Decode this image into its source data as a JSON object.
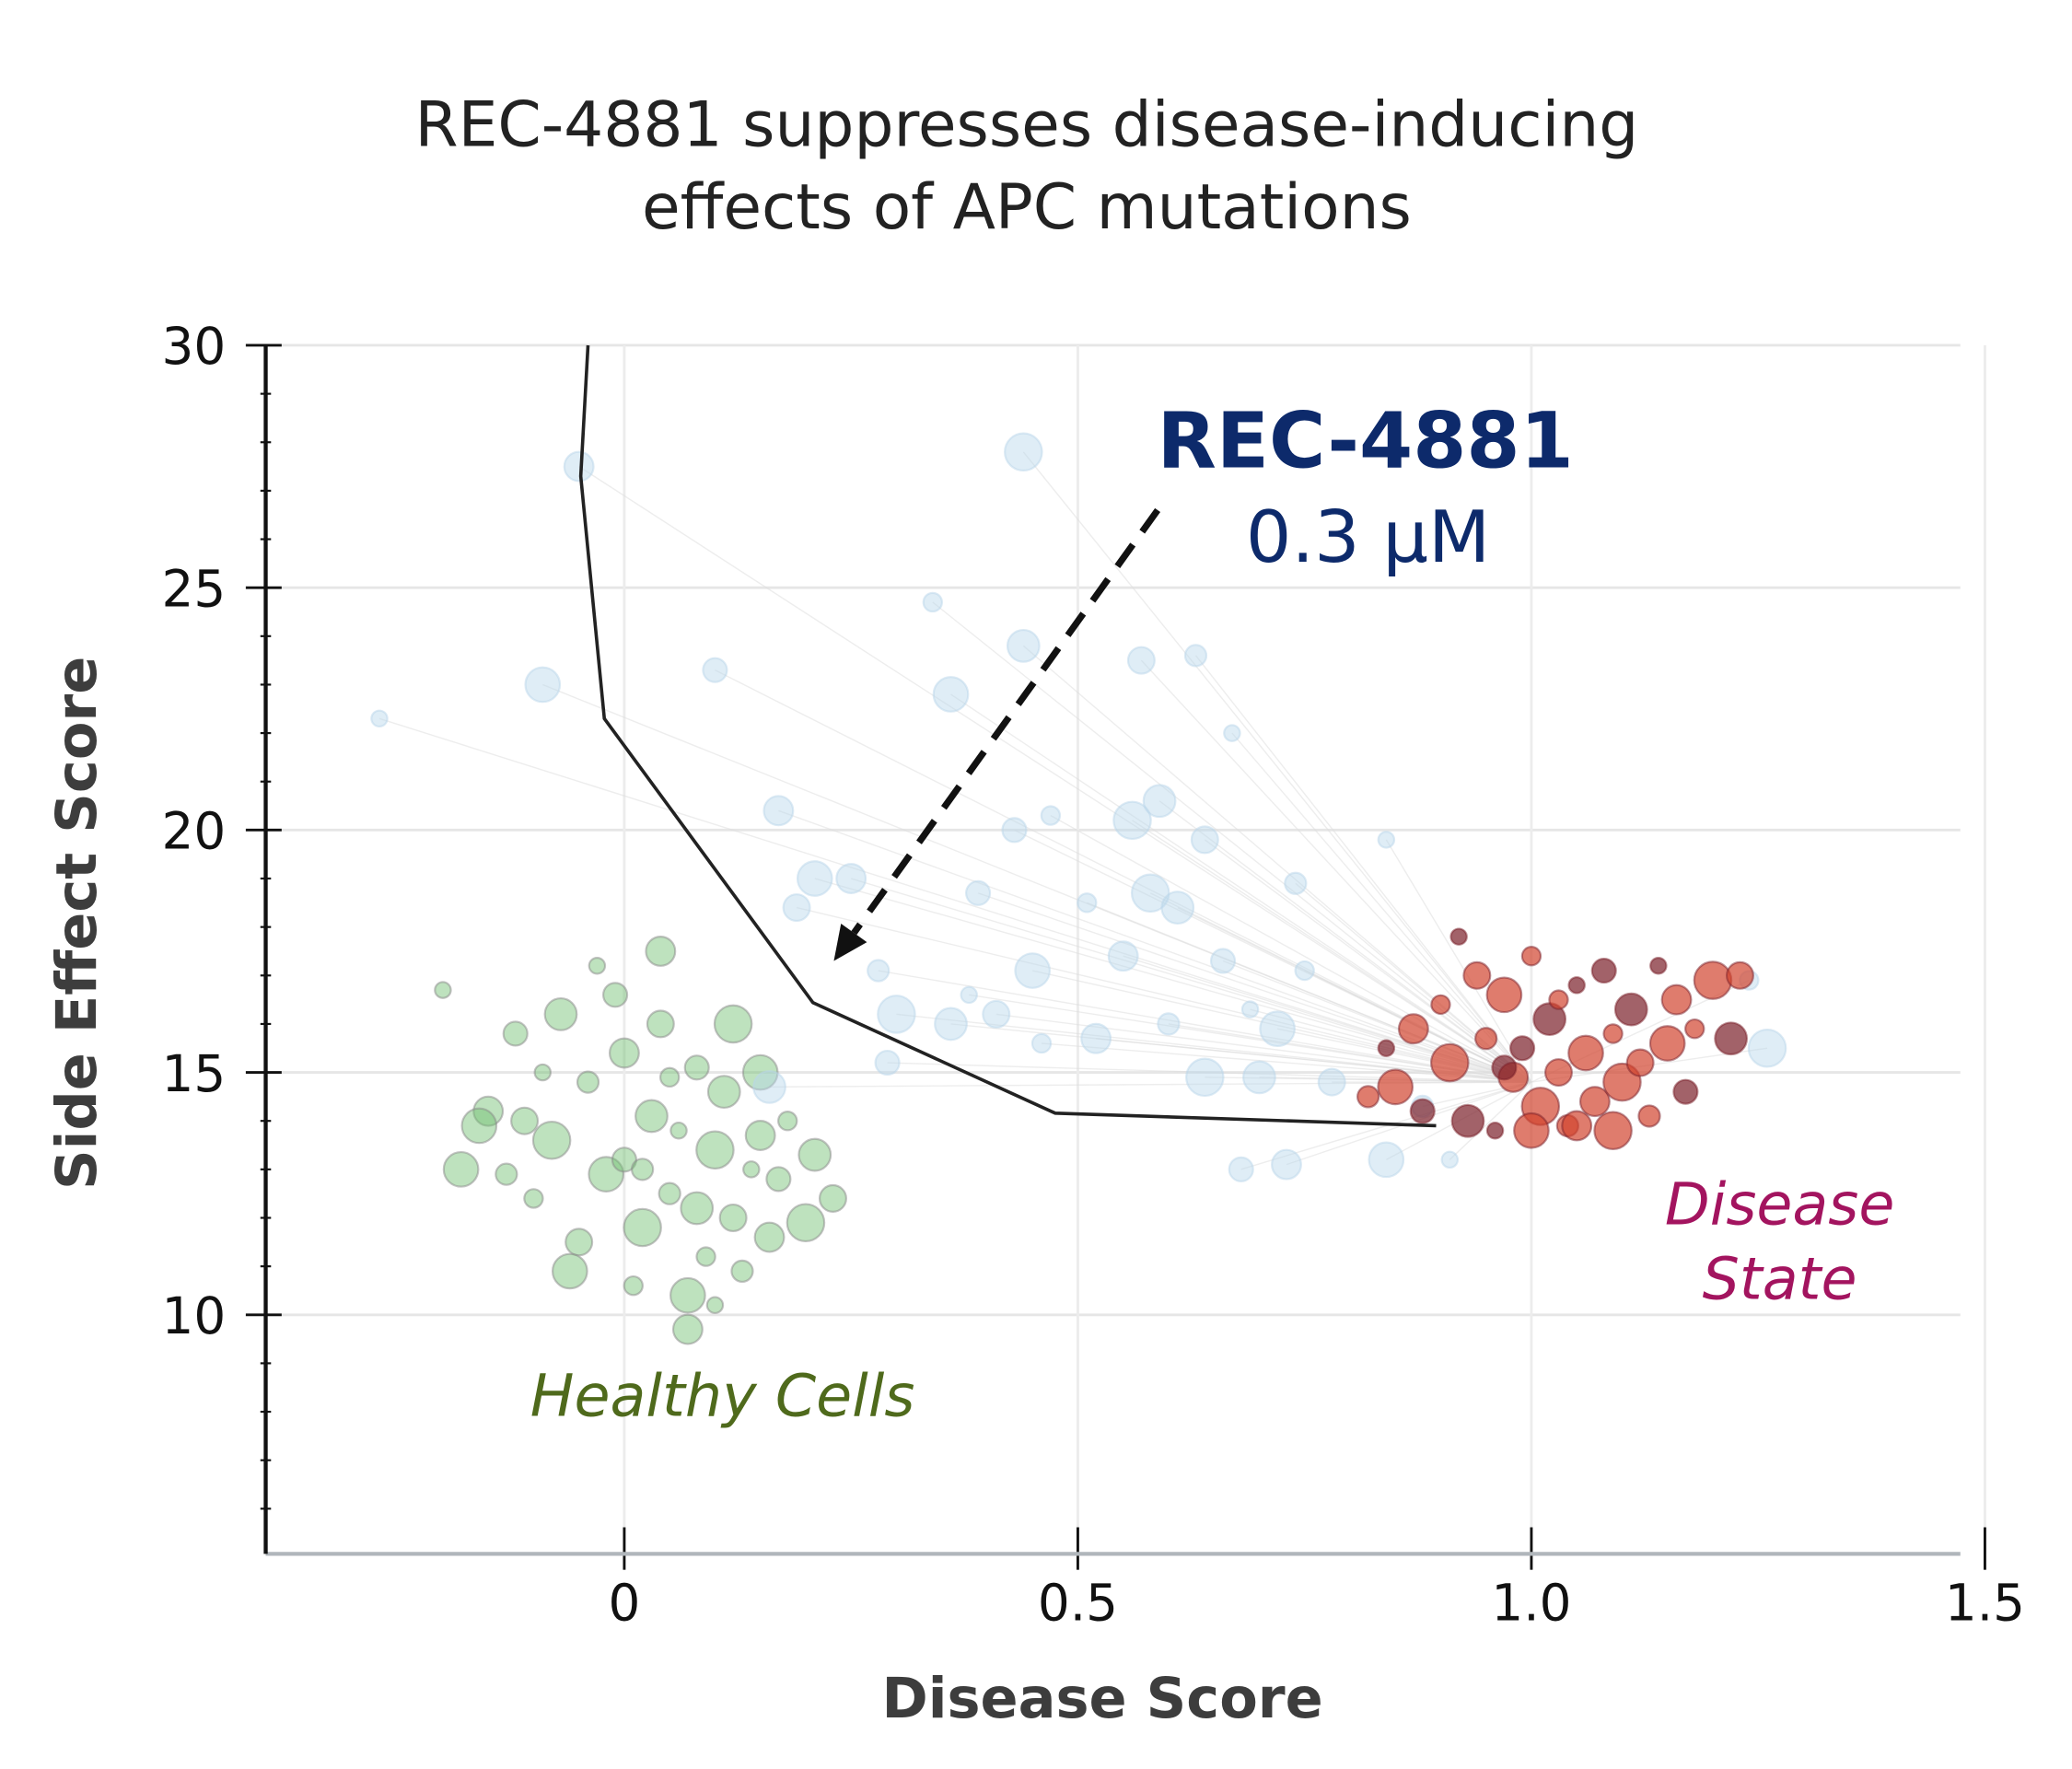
{
  "chart_data": {
    "type": "scatter",
    "title_lines": [
      "REC-4881 suppresses disease-inducing",
      "effects of APC mutations"
    ],
    "xlabel": "Disease Score",
    "ylabel": "Side Effect Score",
    "xlim": [
      -0.395,
      1.5
    ],
    "ylim": [
      5,
      30
    ],
    "xticks": [
      {
        "v": 0,
        "label": "0"
      },
      {
        "v": 0.5,
        "label": "0.5"
      },
      {
        "v": 1.0,
        "label": "1.0"
      },
      {
        "v": 1.5,
        "label": "1.5"
      }
    ],
    "yticks": [
      {
        "v": 10,
        "label": "10"
      },
      {
        "v": 15,
        "label": "15"
      },
      {
        "v": 20,
        "label": "20"
      },
      {
        "v": 25,
        "label": "25"
      },
      {
        "v": 30,
        "label": "30"
      }
    ],
    "grid": true,
    "colors": {
      "healthy": "#6fbf6f",
      "compound": "#b9d6ea",
      "disease": "#d2452f",
      "disease_dark": "#7a1f2a",
      "line": "#222222",
      "annotation": "#0d2a6b",
      "disease_label": "#a3145f",
      "healthy_label": "#4f6a1c"
    },
    "annotations": {
      "compound_name": "REC-4881",
      "compound_dose": "0.3 µM",
      "disease_label_lines": [
        "Disease",
        "State"
      ],
      "healthy_label": "Healthy Cells",
      "arrow_from": [
        0.588,
        26.6
      ],
      "arrow_to": [
        0.231,
        17.3
      ]
    },
    "trajectory": {
      "x": [
        0.895,
        0.475,
        0.208,
        -0.022,
        -0.048,
        -0.04
      ],
      "y": [
        13.9,
        14.16,
        16.44,
        22.3,
        27.3,
        30
      ]
    },
    "series": [
      {
        "key": "healthy",
        "points": [
          [
            -0.2,
            16.7
          ],
          [
            -0.18,
            13.0
          ],
          [
            -0.15,
            14.2
          ],
          [
            -0.12,
            15.8
          ],
          [
            -0.1,
            12.4
          ],
          [
            -0.08,
            13.6
          ],
          [
            -0.07,
            16.2
          ],
          [
            -0.05,
            11.5
          ],
          [
            -0.04,
            14.8
          ],
          [
            -0.03,
            17.2
          ],
          [
            -0.02,
            12.9
          ],
          [
            0.0,
            15.4
          ],
          [
            0.0,
            13.2
          ],
          [
            0.01,
            10.6
          ],
          [
            0.02,
            11.8
          ],
          [
            0.03,
            14.1
          ],
          [
            0.04,
            16.0
          ],
          [
            0.05,
            12.5
          ],
          [
            0.06,
            13.8
          ],
          [
            0.07,
            10.4
          ],
          [
            0.07,
            9.7
          ],
          [
            0.08,
            15.1
          ],
          [
            0.09,
            11.2
          ],
          [
            0.1,
            13.4
          ],
          [
            0.11,
            14.6
          ],
          [
            0.12,
            12.0
          ],
          [
            0.13,
            10.9
          ],
          [
            0.14,
            13.0
          ],
          [
            0.15,
            15.0
          ],
          [
            0.16,
            11.6
          ],
          [
            0.17,
            12.8
          ],
          [
            0.18,
            14.0
          ],
          [
            0.2,
            11.9
          ],
          [
            0.21,
            13.3
          ],
          [
            0.23,
            12.4
          ],
          [
            -0.13,
            12.9
          ],
          [
            -0.09,
            15.0
          ],
          [
            -0.06,
            10.9
          ],
          [
            0.04,
            17.5
          ],
          [
            -0.01,
            16.6
          ],
          [
            0.05,
            14.9
          ],
          [
            0.12,
            16.0
          ],
          [
            0.08,
            12.2
          ],
          [
            -0.11,
            14.0
          ],
          [
            0.02,
            13.0
          ],
          [
            0.1,
            10.2
          ],
          [
            -0.16,
            13.9
          ],
          [
            0.15,
            13.7
          ]
        ]
      },
      {
        "key": "compound",
        "points": [
          [
            -0.27,
            22.3
          ],
          [
            -0.09,
            23.0
          ],
          [
            -0.05,
            27.5
          ],
          [
            0.1,
            23.3
          ],
          [
            0.34,
            24.7
          ],
          [
            0.44,
            27.8
          ],
          [
            0.44,
            23.8
          ],
          [
            0.57,
            23.5
          ],
          [
            0.63,
            23.6
          ],
          [
            0.67,
            22.0
          ],
          [
            0.36,
            22.8
          ],
          [
            0.17,
            20.4
          ],
          [
            0.43,
            20.0
          ],
          [
            0.47,
            20.3
          ],
          [
            0.56,
            20.2
          ],
          [
            0.59,
            20.6
          ],
          [
            0.64,
            19.8
          ],
          [
            0.74,
            18.9
          ],
          [
            0.84,
            19.8
          ],
          [
            0.21,
            19.0
          ],
          [
            0.25,
            19.0
          ],
          [
            0.39,
            18.7
          ],
          [
            0.51,
            18.5
          ],
          [
            0.58,
            18.7
          ],
          [
            0.61,
            18.4
          ],
          [
            0.19,
            18.4
          ],
          [
            0.28,
            17.1
          ],
          [
            0.38,
            16.6
          ],
          [
            0.45,
            17.1
          ],
          [
            0.55,
            17.4
          ],
          [
            0.66,
            17.3
          ],
          [
            0.75,
            17.1
          ],
          [
            0.3,
            16.2
          ],
          [
            0.36,
            16.0
          ],
          [
            0.41,
            16.2
          ],
          [
            0.6,
            16.0
          ],
          [
            0.69,
            16.3
          ],
          [
            0.72,
            15.9
          ],
          [
            0.52,
            15.7
          ],
          [
            0.29,
            15.2
          ],
          [
            0.46,
            15.6
          ],
          [
            0.64,
            14.9
          ],
          [
            0.7,
            14.9
          ],
          [
            0.78,
            14.8
          ],
          [
            0.88,
            14.3
          ],
          [
            0.91,
            13.2
          ],
          [
            0.84,
            13.2
          ],
          [
            0.73,
            13.1
          ],
          [
            0.68,
            13.0
          ],
          [
            1.24,
            16.9
          ],
          [
            1.26,
            15.5
          ],
          [
            0.16,
            14.7
          ]
        ]
      },
      {
        "key": "disease",
        "points": [
          [
            0.84,
            15.5
          ],
          [
            0.85,
            14.7
          ],
          [
            0.87,
            15.9
          ],
          [
            0.88,
            14.2
          ],
          [
            0.9,
            16.4
          ],
          [
            0.91,
            15.2
          ],
          [
            0.93,
            14.0
          ],
          [
            0.94,
            17.0
          ],
          [
            0.95,
            15.7
          ],
          [
            0.96,
            13.8
          ],
          [
            0.97,
            16.6
          ],
          [
            0.98,
            14.9
          ],
          [
            0.99,
            15.5
          ],
          [
            1.0,
            17.4
          ],
          [
            1.01,
            14.3
          ],
          [
            1.02,
            16.1
          ],
          [
            1.03,
            15.0
          ],
          [
            1.04,
            13.9
          ],
          [
            1.05,
            16.8
          ],
          [
            1.06,
            15.4
          ],
          [
            1.07,
            14.4
          ],
          [
            1.08,
            17.1
          ],
          [
            1.09,
            15.8
          ],
          [
            1.1,
            14.8
          ],
          [
            1.11,
            16.3
          ],
          [
            1.12,
            15.2
          ],
          [
            1.13,
            14.1
          ],
          [
            1.14,
            17.2
          ],
          [
            1.15,
            15.6
          ],
          [
            1.16,
            16.5
          ],
          [
            1.17,
            14.6
          ],
          [
            1.18,
            15.9
          ],
          [
            1.2,
            16.9
          ],
          [
            1.22,
            15.7
          ],
          [
            1.23,
            17.0
          ],
          [
            0.82,
            14.5
          ],
          [
            0.92,
            17.8
          ],
          [
            1.0,
            13.8
          ],
          [
            1.05,
            13.9
          ],
          [
            0.97,
            15.1
          ],
          [
            1.03,
            16.5
          ],
          [
            1.09,
            13.8
          ]
        ]
      }
    ]
  }
}
